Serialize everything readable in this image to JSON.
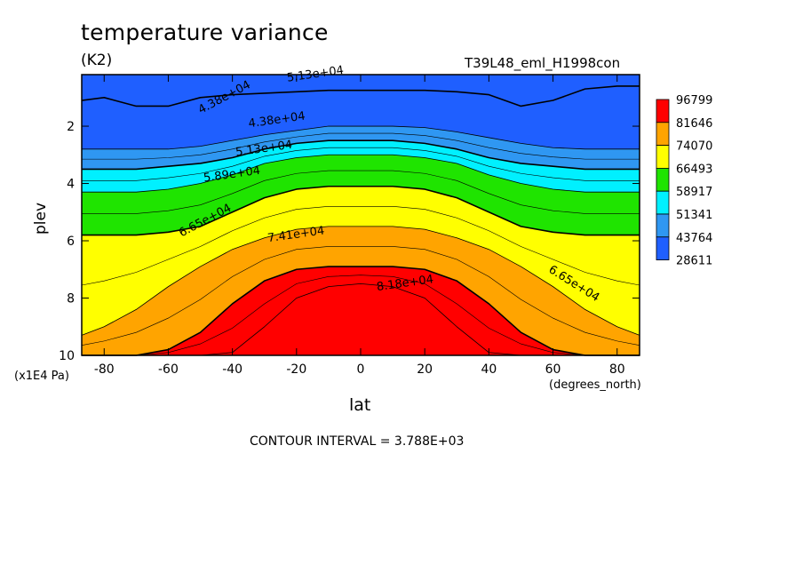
{
  "header": {
    "title": "temperature variance",
    "units": "(K2)",
    "case_name": "T39L48_eml_H1998con"
  },
  "footer": {
    "contour_interval": "CONTOUR INTERVAL = 3.788E+03"
  },
  "colors": {
    "levels": [
      "#1f5fff",
      "#2f97f2",
      "#00f0ff",
      "#1fe400",
      "#ffff00",
      "#ffa400",
      "#ff0000"
    ]
  },
  "chart_data": {
    "type": "contour",
    "title": "temperature variance",
    "units": "(K2)",
    "xlabel": "lat",
    "ylabel": "plev",
    "x_unit": "(degrees_north)",
    "y_unit": "(x1E4 Pa)",
    "xlim": [
      -87,
      87
    ],
    "ylim": [
      10,
      0.2
    ],
    "x_ticks": [
      -80,
      -60,
      -40,
      -20,
      0,
      20,
      40,
      60,
      80
    ],
    "x_tick_labels": [
      "-80",
      "-60",
      "-40",
      "-20",
      "0",
      "20",
      "40",
      "60",
      "80"
    ],
    "y_ticks": [
      2,
      4,
      6,
      8,
      10
    ],
    "y_tick_labels": [
      "2",
      "4",
      "6",
      "8",
      "10"
    ],
    "colorbar_labels": [
      "96799",
      "81646",
      "74070",
      "66493",
      "58917",
      "51341",
      "43764",
      "28611"
    ],
    "contour_labels": [
      {
        "text": "5.13e+04",
        "lat": -14,
        "plev": 0.3
      },
      {
        "text": "4.38e+04",
        "lat": -42,
        "plev": 1.1
      },
      {
        "text": "4.38e+04",
        "lat": -26,
        "plev": 1.9
      },
      {
        "text": "5.13e+04",
        "lat": -30,
        "plev": 2.9
      },
      {
        "text": "5.89e+04",
        "lat": -40,
        "plev": 3.8
      },
      {
        "text": "6.65e+04",
        "lat": -48,
        "plev": 5.4
      },
      {
        "text": "7.41e+04",
        "lat": -20,
        "plev": 5.9
      },
      {
        "text": "8.18e+04",
        "lat": 14,
        "plev": 7.6
      },
      {
        "text": "6.65e+04",
        "lat": 66,
        "plev": 7.6
      }
    ],
    "fields": {
      "profile_x": [
        -87,
        -80,
        -70,
        -60,
        -50,
        -40,
        -30,
        -20,
        -10,
        0,
        10,
        20,
        30,
        40,
        50,
        60,
        70,
        80,
        87
      ],
      "boundaries": [
        {
          "name": "4.38e+04",
          "plev": [
            1.1,
            1.0,
            1.3,
            1.3,
            1.0,
            0.9,
            0.85,
            0.8,
            0.75,
            0.75,
            0.75,
            0.75,
            0.8,
            0.9,
            1.3,
            1.1,
            0.7,
            0.6,
            0.6
          ]
        },
        {
          "name": "4.38e+04b",
          "plev": [
            2.8,
            2.8,
            2.8,
            2.8,
            2.7,
            2.5,
            2.3,
            2.15,
            2.0,
            2.0,
            2.0,
            2.05,
            2.2,
            2.4,
            2.6,
            2.75,
            2.8,
            2.8,
            2.8
          ]
        },
        {
          "name": "5.13e+04",
          "plev": [
            3.5,
            3.5,
            3.5,
            3.4,
            3.3,
            3.1,
            2.8,
            2.6,
            2.5,
            2.5,
            2.5,
            2.6,
            2.8,
            3.1,
            3.3,
            3.4,
            3.5,
            3.5,
            3.5
          ]
        },
        {
          "name": "5.89e+04",
          "plev": [
            4.3,
            4.3,
            4.3,
            4.2,
            4.0,
            3.7,
            3.3,
            3.1,
            3.0,
            3.0,
            3.0,
            3.1,
            3.3,
            3.7,
            4.0,
            4.2,
            4.3,
            4.3,
            4.3
          ]
        },
        {
          "name": "6.65e+04",
          "plev": [
            5.8,
            5.8,
            5.8,
            5.7,
            5.5,
            5.0,
            4.5,
            4.2,
            4.1,
            4.1,
            4.1,
            4.2,
            4.5,
            5.0,
            5.5,
            5.7,
            5.8,
            5.8,
            5.8
          ]
        },
        {
          "name": "7.41e+04",
          "plev": [
            9.3,
            9.0,
            8.4,
            7.6,
            6.9,
            6.3,
            5.9,
            5.6,
            5.5,
            5.5,
            5.5,
            5.6,
            5.9,
            6.3,
            6.9,
            7.6,
            8.4,
            9.0,
            9.3
          ]
        },
        {
          "name": "8.18e+04",
          "plev": [
            10,
            10,
            10,
            9.8,
            9.2,
            8.2,
            7.4,
            7.0,
            6.9,
            6.9,
            6.9,
            7.0,
            7.4,
            8.2,
            9.2,
            9.8,
            10,
            10,
            10
          ]
        },
        {
          "name": "8.9e+04",
          "plev": [
            10,
            10,
            10,
            10,
            10,
            9.9,
            9.0,
            8.0,
            7.6,
            7.5,
            7.6,
            8.0,
            9.0,
            9.9,
            10,
            10,
            10,
            10,
            10
          ]
        }
      ]
    }
  }
}
